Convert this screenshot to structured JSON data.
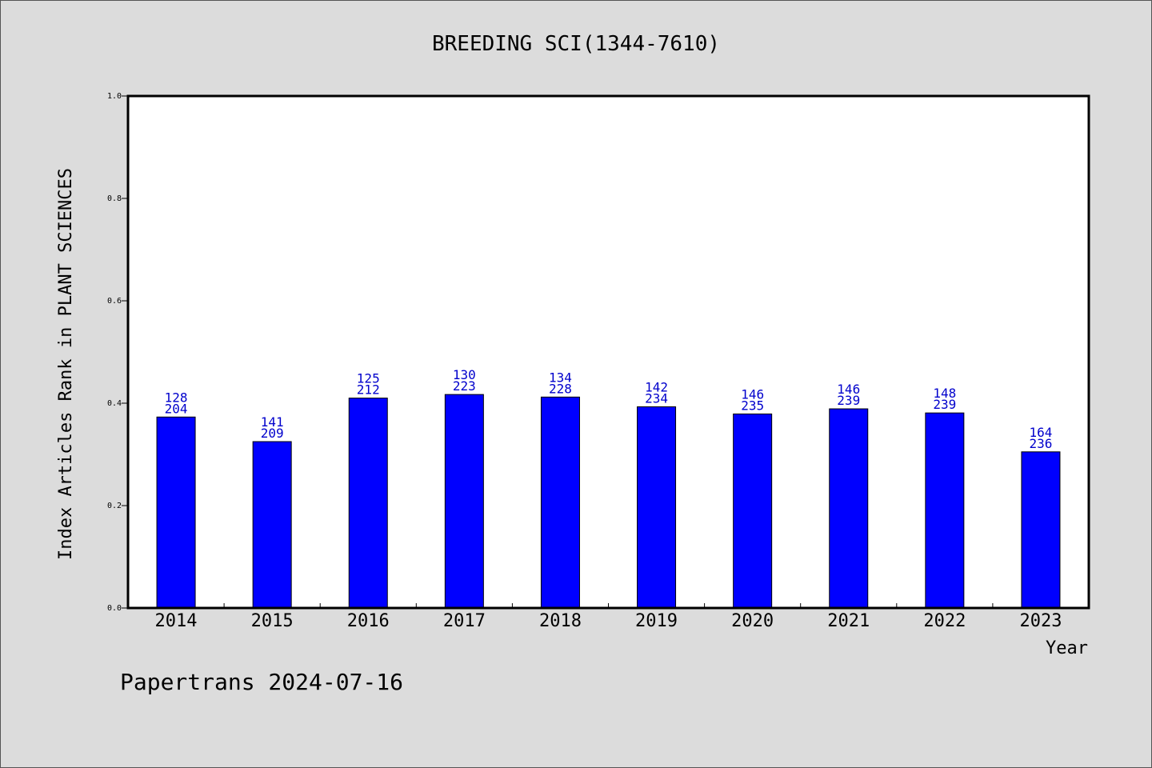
{
  "chart_data": {
    "type": "bar",
    "title": "BREEDING SCI(1344-7610)",
    "xlabel": "Year",
    "ylabel": "Index Articles Rank in PLANT SCIENCES",
    "ylim": [
      0,
      1.0
    ],
    "yticks": [
      "0.0",
      "0.2",
      "0.4",
      "0.6",
      "0.8",
      "1.0"
    ],
    "categories": [
      "2014",
      "2015",
      "2016",
      "2017",
      "2018",
      "2019",
      "2020",
      "2021",
      "2022",
      "2023"
    ],
    "values": [
      0.373,
      0.325,
      0.41,
      0.417,
      0.412,
      0.393,
      0.379,
      0.389,
      0.381,
      0.305
    ],
    "rank_labels": [
      "128",
      "141",
      "125",
      "130",
      "134",
      "142",
      "146",
      "146",
      "148",
      "164"
    ],
    "total_labels": [
      "204",
      "209",
      "212",
      "223",
      "228",
      "234",
      "235",
      "239",
      "239",
      "236"
    ],
    "grid": false,
    "bar_color": "#0000ff",
    "label_color": "#0000cc"
  },
  "footer": {
    "text": "Papertrans 2024-07-16"
  }
}
